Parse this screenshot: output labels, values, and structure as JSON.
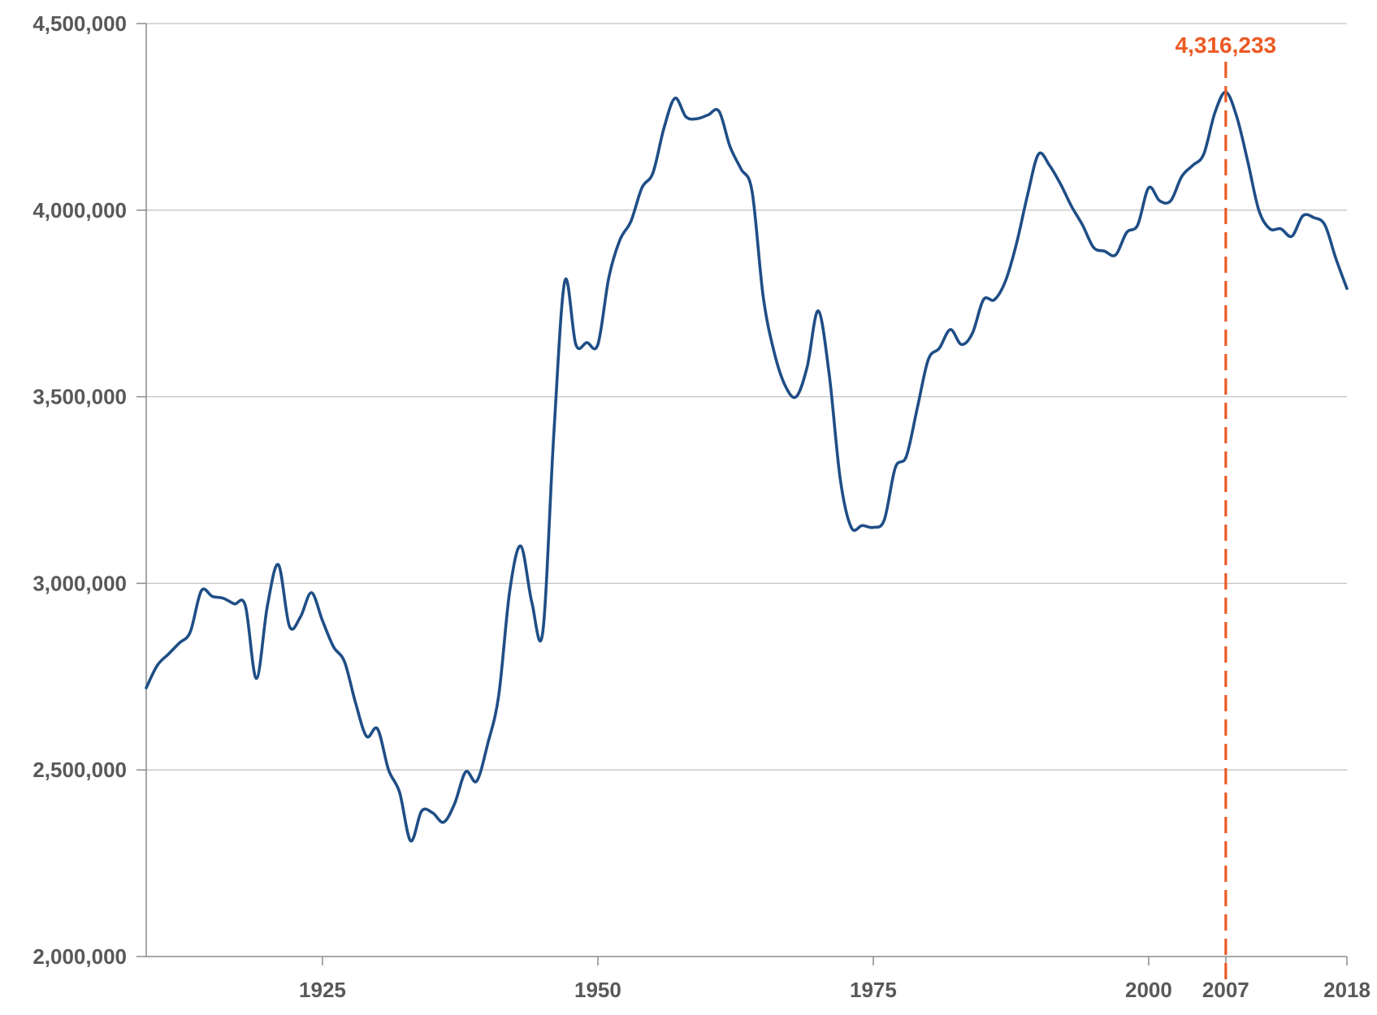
{
  "chart_data": {
    "type": "line",
    "title": "",
    "xlabel": "",
    "ylabel": "",
    "xlim": [
      1909,
      2018
    ],
    "ylim": [
      2000000,
      4500000
    ],
    "grid": true,
    "y_ticks": [
      {
        "value": 2000000,
        "label": "2,000,000"
      },
      {
        "value": 2500000,
        "label": "2,500,000"
      },
      {
        "value": 3000000,
        "label": "3,000,000"
      },
      {
        "value": 3500000,
        "label": "3,500,000"
      },
      {
        "value": 4000000,
        "label": "4,000,000"
      },
      {
        "value": 4500000,
        "label": "4,500,000"
      }
    ],
    "x_ticks": [
      {
        "value": 1925,
        "label": "1925",
        "highlight": false
      },
      {
        "value": 1950,
        "label": "1950",
        "highlight": false
      },
      {
        "value": 1975,
        "label": "1975",
        "highlight": false
      },
      {
        "value": 2000,
        "label": "2000",
        "highlight": false
      },
      {
        "value": 2007,
        "label": "2007",
        "highlight": true
      },
      {
        "value": 2018,
        "label": "2018",
        "highlight": false
      }
    ],
    "series": [
      {
        "name": "series",
        "color": "#1f4e86",
        "x": [
          1909,
          1910,
          1911,
          1912,
          1913,
          1914,
          1915,
          1916,
          1917,
          1918,
          1919,
          1920,
          1921,
          1922,
          1923,
          1924,
          1925,
          1926,
          1927,
          1928,
          1929,
          1930,
          1931,
          1932,
          1933,
          1934,
          1935,
          1936,
          1937,
          1938,
          1939,
          1940,
          1941,
          1942,
          1943,
          1944,
          1945,
          1946,
          1947,
          1948,
          1949,
          1950,
          1951,
          1952,
          1953,
          1954,
          1955,
          1956,
          1957,
          1958,
          1959,
          1960,
          1961,
          1962,
          1963,
          1964,
          1965,
          1966,
          1967,
          1968,
          1969,
          1970,
          1971,
          1972,
          1973,
          1974,
          1975,
          1976,
          1977,
          1978,
          1979,
          1980,
          1981,
          1982,
          1983,
          1984,
          1985,
          1986,
          1987,
          1988,
          1989,
          1990,
          1991,
          1992,
          1993,
          1994,
          1995,
          1996,
          1997,
          1998,
          1999,
          2000,
          2001,
          2002,
          2003,
          2004,
          2005,
          2006,
          2007,
          2008,
          2009,
          2010,
          2011,
          2012,
          2013,
          2014,
          2015,
          2016,
          2017,
          2018
        ],
        "values": [
          2720000,
          2780000,
          2810000,
          2840000,
          2870000,
          2980000,
          2965000,
          2960000,
          2945000,
          2940000,
          2745000,
          2940000,
          3050000,
          2885000,
          2910000,
          2975000,
          2900000,
          2830000,
          2790000,
          2680000,
          2590000,
          2610000,
          2500000,
          2440000,
          2310000,
          2390000,
          2385000,
          2360000,
          2410000,
          2495000,
          2470000,
          2570000,
          2700000,
          2980000,
          3100000,
          2950000,
          2870000,
          3400000,
          3810000,
          3640000,
          3645000,
          3640000,
          3820000,
          3920000,
          3970000,
          4060000,
          4100000,
          4220000,
          4300000,
          4250000,
          4245000,
          4255000,
          4265000,
          4170000,
          4110000,
          4050000,
          3770000,
          3620000,
          3530000,
          3500000,
          3580000,
          3730000,
          3560000,
          3280000,
          3150000,
          3155000,
          3150000,
          3170000,
          3310000,
          3340000,
          3470000,
          3600000,
          3630000,
          3680000,
          3640000,
          3670000,
          3760000,
          3760000,
          3810000,
          3910000,
          4040000,
          4150000,
          4120000,
          4070000,
          4010000,
          3960000,
          3900000,
          3890000,
          3880000,
          3940000,
          3960000,
          4060000,
          4025000,
          4025000,
          4090000,
          4120000,
          4150000,
          4260000,
          4316233,
          4250000,
          4130000,
          4000000,
          3950000,
          3950000,
          3930000,
          3985000,
          3980000,
          3960000,
          3870000,
          3790000
        ]
      }
    ],
    "annotation": {
      "x": 2007,
      "value": 4316233,
      "label": "4,316,233",
      "color": "#ec5a24",
      "style": "dashed vertical line"
    }
  }
}
